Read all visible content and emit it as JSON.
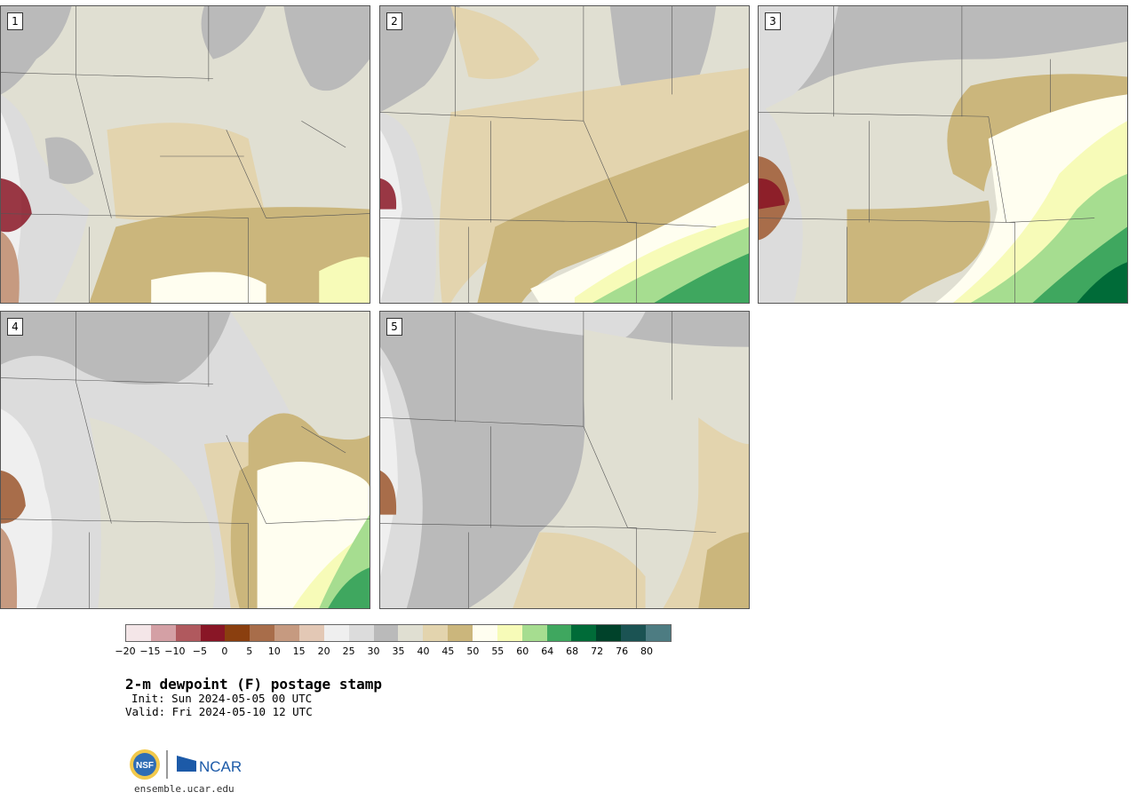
{
  "panels": [
    {
      "label": "1"
    },
    {
      "label": "2"
    },
    {
      "label": "3"
    },
    {
      "label": "4"
    },
    {
      "label": "5"
    }
  ],
  "colorbar": {
    "colors": [
      "#f4e6e8",
      "#d4a0a5",
      "#b0595e",
      "#891626",
      "#8a3f0f",
      "#a86d4a",
      "#c69a80",
      "#e3c8b5",
      "#efefef",
      "#dcdcdc",
      "#bababa",
      "#e0dfd2",
      "#e3d4ae",
      "#cbb67c",
      "#fffef0",
      "#f7fbb8",
      "#a6dd90",
      "#3fa75f",
      "#006b38",
      "#00422a",
      "#1b5353",
      "#4d7c82"
    ],
    "ticks": [
      "-20",
      "-15",
      "-10",
      "-5",
      "0",
      "5",
      "10",
      "15",
      "20",
      "25",
      "30",
      "35",
      "40",
      "45",
      "50",
      "55",
      "60",
      "64",
      "68",
      "72",
      "76",
      "80"
    ]
  },
  "title": "2-m dewpoint (F) postage stamp",
  "init": "Init: Sun 2024-05-05 00 UTC",
  "valid": "Valid: Fri 2024-05-10 12 UTC",
  "logos": {
    "left": "NSF",
    "right": "NCAR"
  },
  "site": "ensemble.ucar.edu"
}
